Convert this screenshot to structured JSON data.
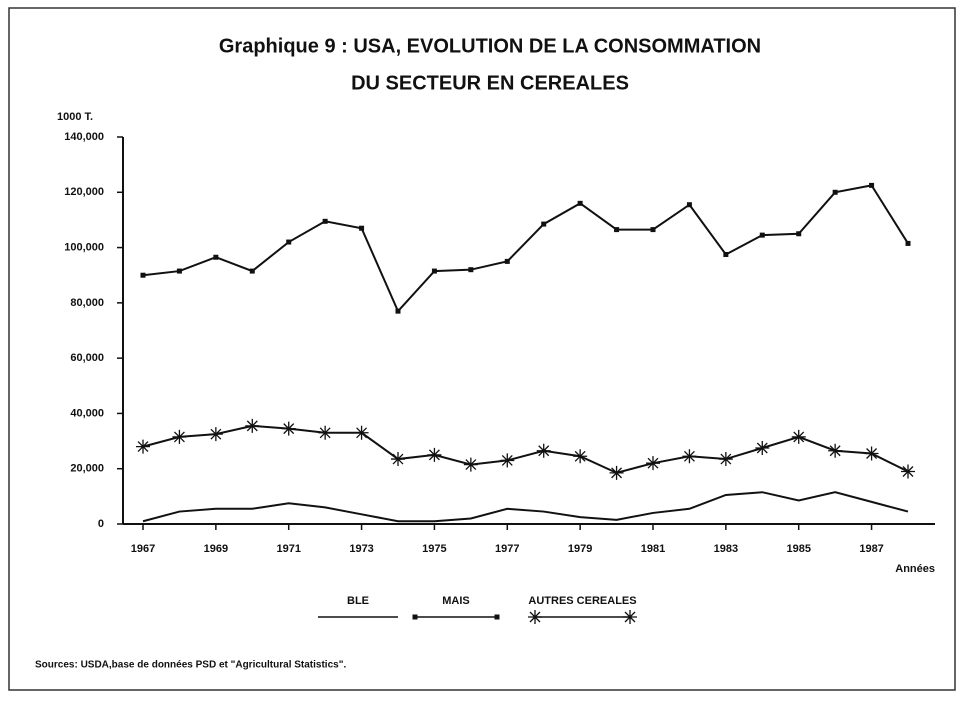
{
  "chart_data": {
    "type": "line",
    "title": [
      "Graphique 9 : USA, EVOLUTION DE LA CONSOMMATION",
      "DU SECTEUR EN CEREALES"
    ],
    "ylabel": "1000 T.",
    "xlabel": "Années",
    "source": "Sources: USDA,base de données PSD et \"Agricultural Statistics\".",
    "x": [
      1967,
      1968,
      1969,
      1970,
      1971,
      1972,
      1973,
      1974,
      1975,
      1976,
      1977,
      1978,
      1979,
      1980,
      1981,
      1982,
      1983,
      1984,
      1985,
      1986,
      1987,
      1988
    ],
    "xlim": [
      1967,
      1988
    ],
    "xticks": [
      1967,
      1969,
      1971,
      1973,
      1975,
      1977,
      1979,
      1981,
      1983,
      1985,
      1987
    ],
    "ylim": [
      0,
      140000
    ],
    "yticks": [
      0,
      {
        "value": 20000,
        "label": "20,000"
      },
      {
        "value": 40000,
        "label": "40,000"
      },
      {
        "value": 60000,
        "label": "60,000"
      },
      {
        "value": 80000,
        "label": "80,000"
      },
      {
        "value": 100000,
        "label": "100,000"
      },
      {
        "value": 120000,
        "label": "120,000"
      },
      {
        "value": 140000,
        "label": "140,000"
      }
    ],
    "series": [
      {
        "name": "BLE",
        "color": "#111111",
        "marker": "none",
        "values": [
          1000,
          4500,
          5500,
          5500,
          7500,
          6000,
          3500,
          1000,
          1000,
          2000,
          5500,
          4500,
          2500,
          1500,
          4000,
          5500,
          10500,
          11500,
          8500,
          11500,
          8000,
          4500
        ]
      },
      {
        "name": "MAIS",
        "color": "#111111",
        "marker": "square",
        "values": [
          90000,
          91500,
          96500,
          91500,
          102000,
          109500,
          107000,
          77000,
          91500,
          92000,
          95000,
          108500,
          116000,
          106500,
          106500,
          115500,
          97500,
          104500,
          105000,
          120000,
          122500,
          101500
        ]
      },
      {
        "name": "AUTRES CEREALES",
        "color": "#111111",
        "marker": "star",
        "values": [
          28000,
          31500,
          32500,
          35500,
          34500,
          33000,
          33000,
          23500,
          25000,
          21500,
          23000,
          26500,
          24500,
          18500,
          22000,
          24500,
          23500,
          27500,
          31500,
          26500,
          25500,
          19000
        ]
      }
    ]
  }
}
